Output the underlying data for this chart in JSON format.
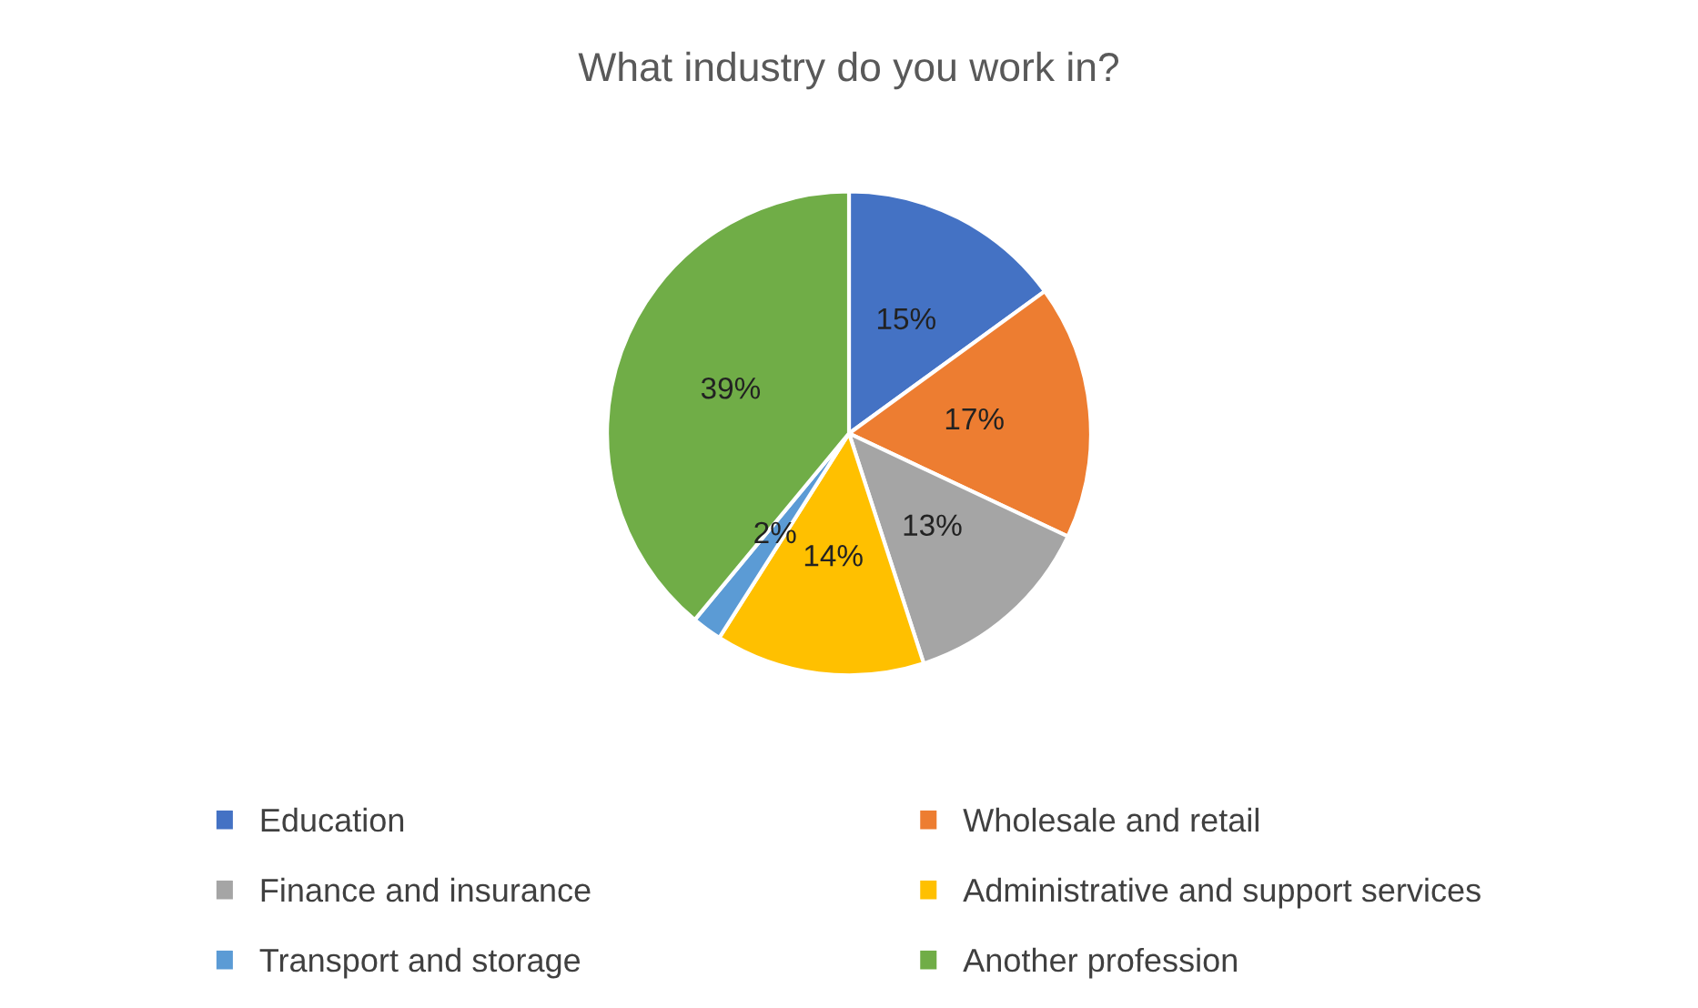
{
  "chart_data": {
    "type": "pie",
    "title": "What industry do you work in?",
    "categories": [
      "Education",
      "Wholesale and retail",
      "Finance and insurance",
      "Administrative and support services",
      "Transport and storage",
      "Another profession"
    ],
    "values": [
      15,
      17,
      13,
      14,
      2,
      39
    ],
    "colors": [
      "#4472c4",
      "#ed7d31",
      "#a5a5a5",
      "#ffc000",
      "#5b9bd5",
      "#70ad47"
    ],
    "value_labels": [
      "15%",
      "17%",
      "13%",
      "14%",
      "2%",
      "39%"
    ],
    "legend": "bottom"
  }
}
